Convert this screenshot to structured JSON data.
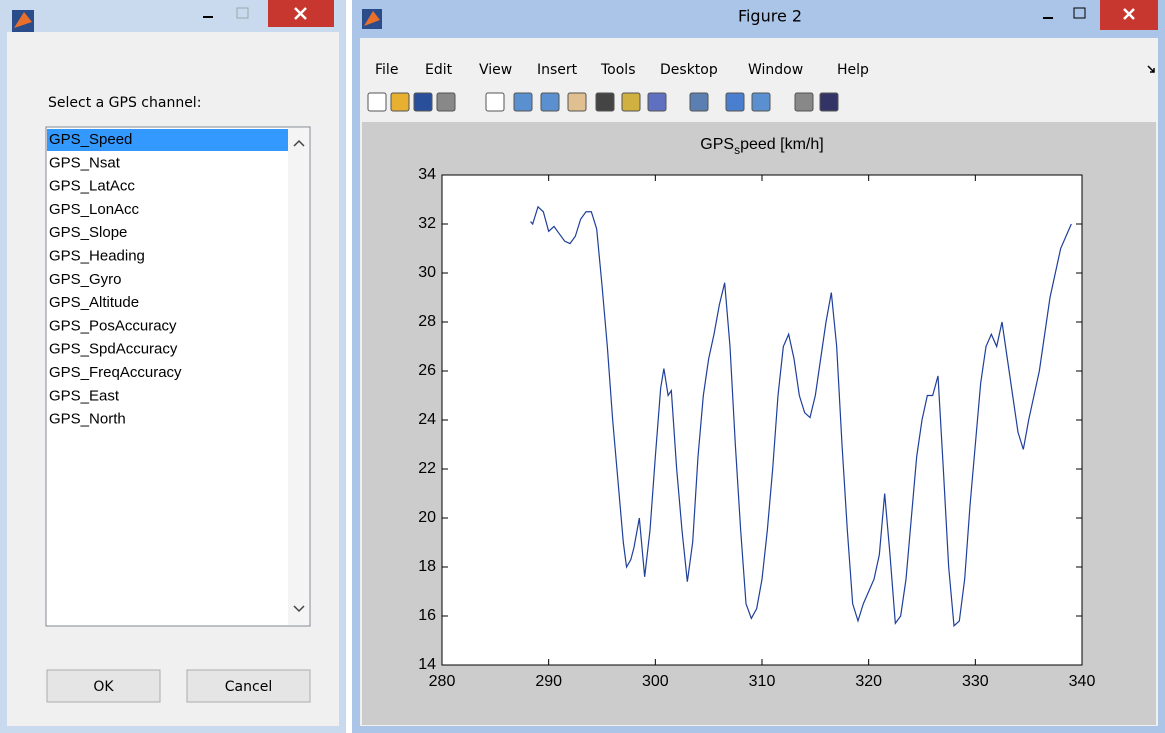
{
  "dialog": {
    "prompt": "Select a GPS channel:",
    "items": [
      "GPS_Speed",
      "GPS_Nsat",
      "GPS_LatAcc",
      "GPS_LonAcc",
      "GPS_Slope",
      "GPS_Heading",
      "GPS_Gyro",
      "GPS_Altitude",
      "GPS_PosAccuracy",
      "GPS_SpdAccuracy",
      "GPS_FreqAccuracy",
      "GPS_East",
      "GPS_North"
    ],
    "selected": 0,
    "buttons": [
      "OK",
      "Cancel"
    ]
  },
  "figure": {
    "title": "Figure 2",
    "menu": [
      "File",
      "Edit",
      "View",
      "Insert",
      "Tools",
      "Desktop",
      "Window",
      "Help"
    ]
  },
  "chart_data": {
    "type": "line",
    "title": [
      "GPS",
      "s",
      "peed [km/h]"
    ],
    "xlim": [
      280,
      340
    ],
    "xticks": [
      280,
      290,
      300,
      310,
      320,
      330,
      340
    ],
    "ylim": [
      14,
      34
    ],
    "yticks": [
      14,
      16,
      18,
      20,
      22,
      24,
      26,
      28,
      30,
      32,
      34
    ],
    "grid": false,
    "series": [
      {
        "color": "#1f3f9a",
        "x": [
          288.3,
          288.5,
          289,
          289.5,
          290,
          290.5,
          291,
          291.5,
          292,
          292.5,
          293,
          293.5,
          294,
          294.5,
          295,
          295.5,
          296,
          296.5,
          297,
          297.3,
          297.7,
          298,
          298.5,
          299,
          299.5,
          300,
          300.5,
          300.8,
          301.2,
          301.5,
          302,
          302.5,
          303,
          303.5,
          304,
          304.5,
          305,
          305.5,
          306,
          306.5,
          307,
          307.5,
          308,
          308.5,
          309,
          309.5,
          310,
          310.5,
          311,
          311.5,
          312,
          312.5,
          313,
          313.5,
          314,
          314.5,
          315,
          315.5,
          316,
          316.5,
          317,
          317.5,
          318,
          318.5,
          319,
          319.5,
          320,
          320.5,
          321,
          321.5,
          322,
          322.5,
          323,
          323.5,
          324,
          324.5,
          325,
          325.5,
          326,
          326.5,
          327,
          327.5,
          328,
          328.5,
          329,
          329.5,
          330,
          330.5,
          331,
          331.5,
          332,
          332.5,
          333,
          333.5,
          334,
          334.5,
          335,
          335.5,
          336,
          336.5,
          337,
          337.5,
          338,
          338.5,
          339
        ],
        "values": [
          32.1,
          32.0,
          32.7,
          32.5,
          31.7,
          31.9,
          31.6,
          31.3,
          31.2,
          31.5,
          32.2,
          32.5,
          32.5,
          31.8,
          29.5,
          27,
          24,
          21.5,
          19,
          18,
          18.3,
          18.8,
          20,
          17.6,
          19.5,
          22.5,
          25.3,
          26.1,
          25,
          25.2,
          22,
          19.5,
          17.4,
          19,
          22.5,
          25,
          26.5,
          27.5,
          28.7,
          29.6,
          27,
          23,
          19.5,
          16.5,
          15.9,
          16.3,
          17.5,
          19.5,
          22,
          25,
          27,
          27.5,
          26.5,
          25,
          24.3,
          24.1,
          25,
          26.5,
          28,
          29.2,
          27,
          23,
          19.5,
          16.5,
          15.8,
          16.5,
          17,
          17.5,
          18.5,
          21,
          18.5,
          15.7,
          16,
          17.5,
          20,
          22.5,
          24,
          25,
          25,
          25.8,
          22,
          18,
          15.6,
          15.8,
          17.5,
          20.5,
          23,
          25.5,
          27,
          27.5,
          27,
          28,
          26.5,
          25,
          23.5,
          22.8,
          24,
          25,
          26,
          27.5,
          29,
          30,
          31,
          31.5,
          32
        ]
      }
    ]
  }
}
